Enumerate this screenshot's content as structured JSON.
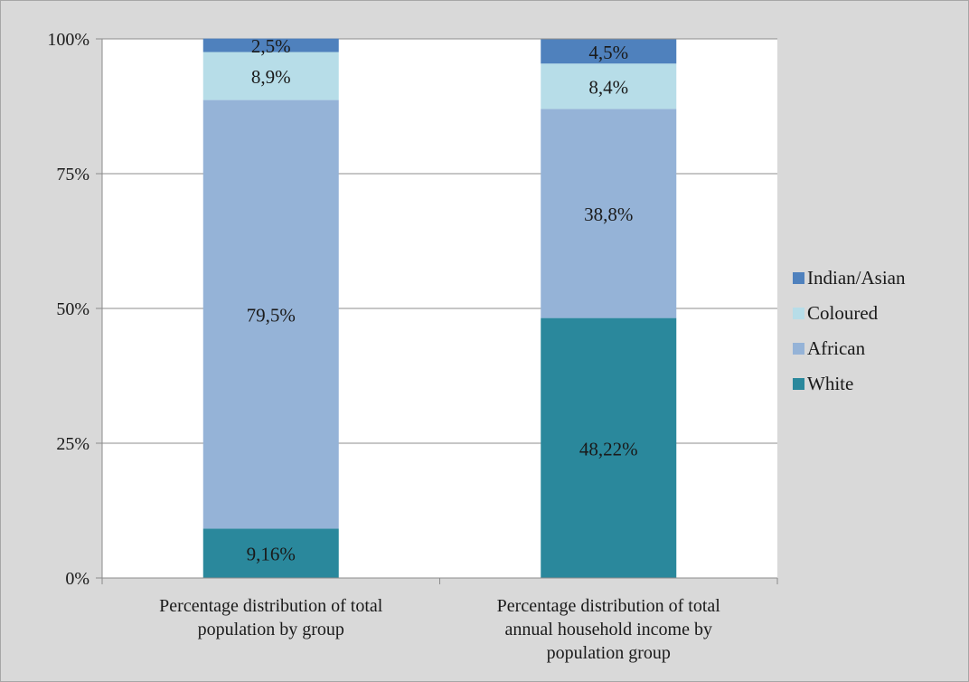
{
  "chart_data": {
    "type": "stacked-bar-100",
    "title": "",
    "xlabel": "",
    "ylabel": "",
    "ylim": [
      0,
      100
    ],
    "yticks": [
      "0%",
      "25%",
      "50%",
      "75%",
      "100%"
    ],
    "ytick_values": [
      0,
      25,
      50,
      75,
      100
    ],
    "grid": true,
    "legend_position": "right",
    "categories": [
      [
        "Percentage distribution of total",
        "population by group"
      ],
      [
        "Percentage distribution of total",
        "annual household income by",
        "population group"
      ]
    ],
    "series": [
      {
        "name": "White",
        "color": "#2a889c",
        "values": [
          9.16,
          48.22
        ],
        "labels": [
          "9,16%",
          "48,22%"
        ]
      },
      {
        "name": "African",
        "color": "#95b3d7",
        "values": [
          79.5,
          38.8
        ],
        "labels": [
          "79,5%",
          "38,8%"
        ]
      },
      {
        "name": "Coloured",
        "color": "#b7dde8",
        "values": [
          8.9,
          8.4
        ],
        "labels": [
          "8,9%",
          "8,4%"
        ]
      },
      {
        "name": "Indian/Asian",
        "color": "#4f81bd",
        "values": [
          2.5,
          4.5
        ],
        "labels": [
          "2,5%",
          "4,5%"
        ]
      }
    ],
    "legend_order": [
      "Indian/Asian",
      "Coloured",
      "African",
      "White"
    ]
  }
}
